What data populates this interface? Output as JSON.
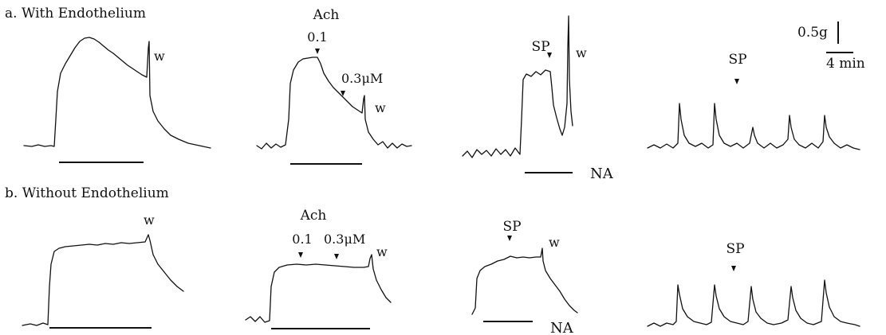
{
  "panels": {
    "a": {
      "label": "a.  With  Endothelium"
    },
    "b": {
      "label": "b.  Without   Endothelium"
    }
  },
  "labels": {
    "ach": "Ach",
    "dose_low": "0.1",
    "dose_high_a": "0.3μM",
    "dose_high_b": "0.3μM",
    "sp": "SP",
    "w": "w",
    "na": "NA"
  },
  "scale_bar": {
    "force": "0.5g",
    "time": "4 min"
  }
}
